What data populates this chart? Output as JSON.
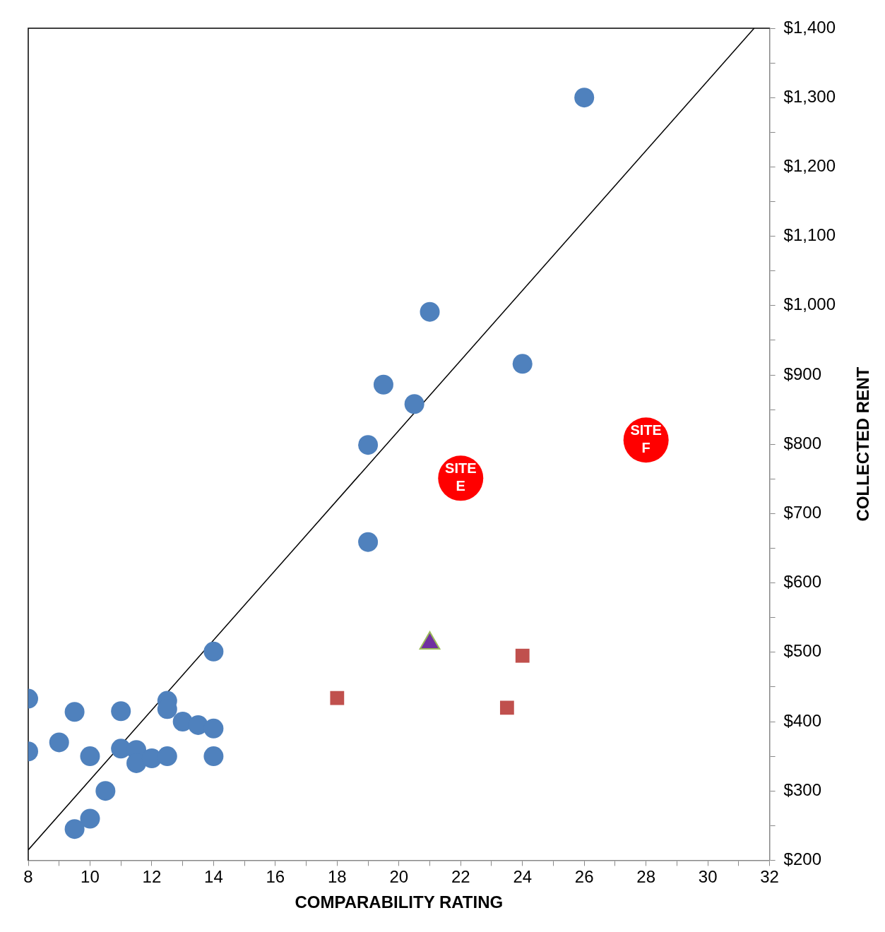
{
  "chart_data": {
    "type": "scatter",
    "xlabel": "COMPARABILITY RATING",
    "ylabel": "COLLECTED RENT",
    "xlim": [
      8,
      32
    ],
    "ylim": [
      200,
      1400
    ],
    "xticks": [
      8,
      {
        "value": 9,
        "label": null
      },
      10,
      {
        "value": 11,
        "label": null
      },
      12,
      {
        "value": 13,
        "label": null
      },
      14,
      {
        "value": 15,
        "label": null
      },
      16,
      {
        "value": 17,
        "label": null
      },
      18,
      {
        "value": 19,
        "label": null
      },
      20,
      {
        "value": 21,
        "label": null
      },
      22,
      {
        "value": 23,
        "label": null
      },
      24,
      {
        "value": 25,
        "label": null
      },
      26,
      {
        "value": 27,
        "label": null
      },
      28,
      {
        "value": 29,
        "label": null
      },
      30,
      {
        "value": 31,
        "label": null
      },
      32
    ],
    "yticks": [
      {
        "value": 200,
        "label": "$200"
      },
      {
        "value": 250,
        "label": null
      },
      {
        "value": 300,
        "label": "$300"
      },
      {
        "value": 350,
        "label": null
      },
      {
        "value": 400,
        "label": "$400"
      },
      {
        "value": 450,
        "label": null
      },
      {
        "value": 500,
        "label": "$500"
      },
      {
        "value": 550,
        "label": null
      },
      {
        "value": 600,
        "label": "$600"
      },
      {
        "value": 650,
        "label": null
      },
      {
        "value": 700,
        "label": "$700"
      },
      {
        "value": 750,
        "label": null
      },
      {
        "value": 800,
        "label": "$800"
      },
      {
        "value": 850,
        "label": null
      },
      {
        "value": 900,
        "label": "$900"
      },
      {
        "value": 950,
        "label": null
      },
      {
        "value": 1000,
        "label": "$1,000"
      },
      {
        "value": 1050,
        "label": null
      },
      {
        "value": 1100,
        "label": "$1,100"
      },
      {
        "value": 1150,
        "label": null
      },
      {
        "value": 1200,
        "label": "$1,200"
      },
      {
        "value": 1250,
        "label": null
      },
      {
        "value": 1300,
        "label": "$1,300"
      },
      {
        "value": 1350,
        "label": null
      },
      {
        "value": 1400,
        "label": "$1,400"
      }
    ],
    "grid": false,
    "legend": false,
    "series": [
      {
        "type": "scatter",
        "marker": "circle",
        "color": "#4f81bd",
        "x": [
          8,
          8,
          9,
          9.5,
          10,
          10,
          10.5,
          9.5,
          11,
          11,
          11.5,
          11.5,
          12,
          12.5,
          12.5,
          12.5,
          13,
          13.5,
          14,
          14,
          14,
          19,
          19,
          19.5,
          20.5,
          21,
          24,
          26
        ],
        "values": [
          433,
          357,
          370,
          414,
          350,
          260,
          300,
          245,
          415,
          361,
          359,
          340,
          347,
          350,
          430,
          418,
          400,
          395,
          390,
          350,
          501,
          659,
          799,
          886,
          858,
          991,
          916,
          1300
        ]
      },
      {
        "type": "scatter",
        "marker": "square",
        "color": "#c0504d",
        "x": [
          18,
          23.5,
          24
        ],
        "values": [
          434,
          420,
          495
        ]
      },
      {
        "type": "scatter",
        "marker": "triangle",
        "color": "#7030a0",
        "x": [
          21
        ],
        "values": [
          513
        ]
      },
      {
        "type": "scatter",
        "marker": "circle",
        "name": "SITE E",
        "color": "#ff0000",
        "x": [
          22
        ],
        "values": [
          751
        ]
      },
      {
        "type": "scatter",
        "marker": "circle",
        "name": "SITE F",
        "color": "#ff0000",
        "x": [
          28
        ],
        "values": [
          806
        ]
      },
      {
        "type": "line",
        "marker": "none",
        "color": "#000000",
        "x": [
          8,
          31.5
        ],
        "values": [
          215,
          1400
        ]
      }
    ]
  }
}
